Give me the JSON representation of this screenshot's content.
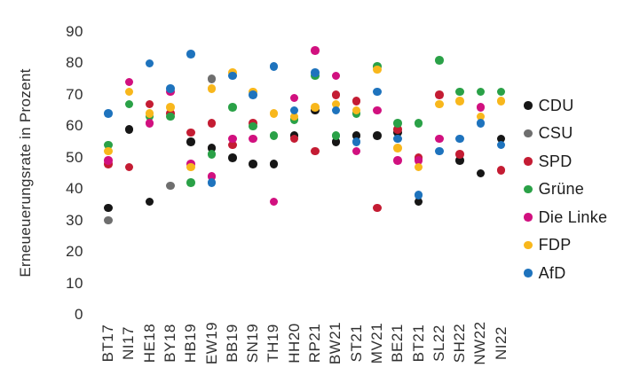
{
  "chart": {
    "ylabel": "Erneueuerungsrate in Prozent"
  },
  "chart_data": {
    "type": "scatter",
    "title": "",
    "xlabel": "",
    "ylabel": "Erneueuerungsrate in Prozent",
    "ylim": [
      0,
      90
    ],
    "yticks": [
      90,
      80,
      70,
      60,
      50,
      40,
      30,
      20,
      10,
      0
    ],
    "grid": false,
    "axis_lines": false,
    "legend_position": "right",
    "categories": [
      "BT17",
      "NI17",
      "HE18",
      "BY18",
      "HB19",
      "EW19",
      "BB19",
      "SN19",
      "TH19",
      "HH20",
      "RP21",
      "BW21",
      "ST21",
      "MV21",
      "BE21",
      "BT21",
      "SL22",
      "SH22",
      "NW22",
      "NI22"
    ],
    "series": [
      {
        "name": "CDU",
        "color": "#161616",
        "values": [
          34,
          59,
          36,
          null,
          55,
          53,
          50,
          48,
          48,
          57,
          65,
          55,
          57,
          57,
          58,
          36,
          null,
          49,
          45,
          56
        ]
      },
      {
        "name": "CSU",
        "color": "#6e6e6e",
        "values": [
          30,
          null,
          null,
          41,
          null,
          75,
          null,
          null,
          null,
          null,
          null,
          null,
          null,
          null,
          null,
          null,
          null,
          null,
          null,
          null
        ]
      },
      {
        "name": "SPD",
        "color": "#c41c33",
        "values": [
          48,
          47,
          67,
          64,
          58,
          61,
          54,
          61,
          null,
          56,
          52,
          70,
          68,
          34,
          59,
          50,
          70,
          51,
          null,
          46
        ]
      },
      {
        "name": "Grüne",
        "color": "#2aa147",
        "values": [
          54,
          67,
          63,
          63,
          42,
          51,
          66,
          60,
          57,
          62,
          76,
          57,
          64,
          79,
          61,
          61,
          81,
          71,
          71,
          71
        ]
      },
      {
        "name": "Die Linke",
        "color": "#d1107f",
        "values": [
          49,
          74,
          61,
          71,
          48,
          44,
          56,
          56,
          36,
          69,
          84,
          76,
          52,
          65,
          49,
          49,
          56,
          null,
          66,
          null
        ]
      },
      {
        "name": "FDP",
        "color": "#f8b71c",
        "values": [
          52,
          71,
          64,
          66,
          47,
          72,
          77,
          71,
          64,
          63,
          66,
          67,
          65,
          78,
          53,
          47,
          67,
          68,
          63,
          68
        ]
      },
      {
        "name": "AfD",
        "color": "#1e73bd",
        "values": [
          64,
          null,
          80,
          72,
          83,
          42,
          76,
          70,
          79,
          65,
          77,
          65,
          55,
          71,
          56,
          38,
          52,
          56,
          61,
          54
        ]
      }
    ],
    "layout": {
      "x0": 122,
      "dx": 23.3,
      "y_intercept": 355,
      "y_scale": 3.545,
      "tick_right_edge": 94,
      "xlabel_center_y": 387,
      "legend_x": 590,
      "legend_y0": 119,
      "legend_dy": 31.5
    }
  }
}
